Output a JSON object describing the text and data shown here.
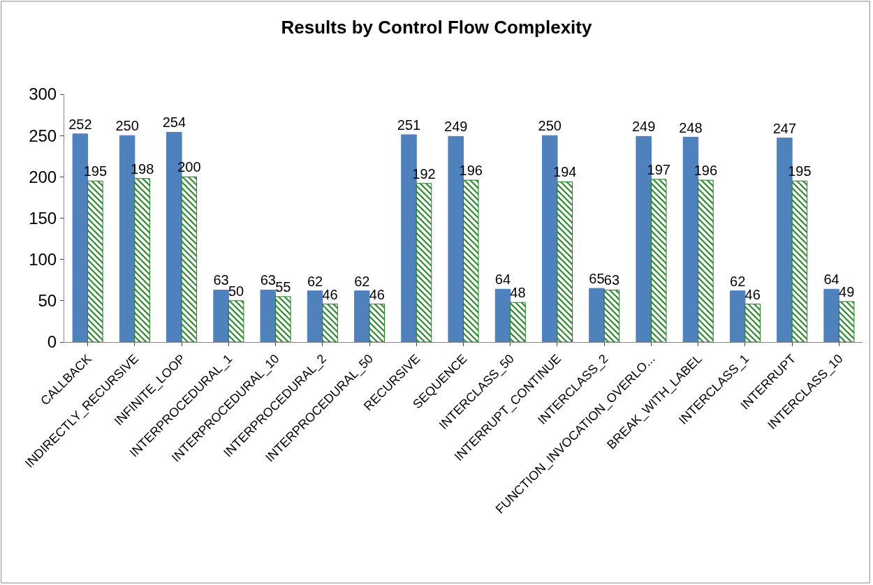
{
  "chart_data": {
    "type": "bar",
    "title": "Results by Control Flow Complexity",
    "categories": [
      "CALLBACK",
      "INDIRECTLY_RECURSIVE",
      "INFINITE_LOOP",
      "INTERPROCEDURAL_1",
      "INTERPROCEDURAL_10",
      "INTERPROCEDURAL_2",
      "INTERPROCEDURAL_50",
      "RECURSIVE",
      "SEQUENCE",
      "INTERCLASS_50",
      "INTERRUPT_CONTINUE",
      "INTERCLASS_2",
      "FUNCTION_INVOCATION_OVERLO...",
      "BREAK_WITH_LABEL",
      "INTERCLASS_1",
      "INTERRUPT",
      "INTERCLASS_10"
    ],
    "series": [
      {
        "color": "#4f81bd",
        "values": [
          252,
          250,
          254,
          63,
          63,
          62,
          62,
          251,
          249,
          64,
          250,
          65,
          249,
          248,
          62,
          247,
          64
        ]
      },
      {
        "color": "#1e7b1e",
        "values": [
          195,
          198,
          200,
          50,
          55,
          46,
          46,
          192,
          196,
          48,
          194,
          63,
          197,
          196,
          46,
          195,
          49
        ]
      }
    ],
    "ylim": [
      0,
      300
    ],
    "yticks": [
      0,
      50,
      100,
      150,
      200,
      250,
      300
    ],
    "grid": false,
    "data_labels": true
  }
}
